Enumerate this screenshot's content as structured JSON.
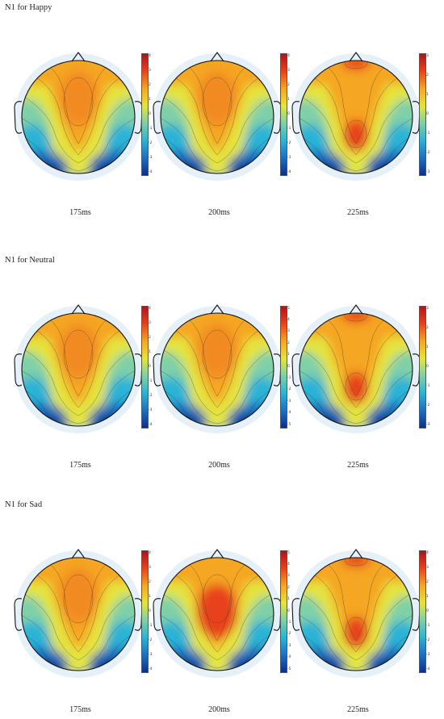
{
  "colormap": [
    "#0b2f8a",
    "#1f6fc0",
    "#2bb3d6",
    "#7fd0a8",
    "#e4e53c",
    "#f5a623",
    "#e8431a",
    "#b0131b"
  ],
  "sections": [
    {
      "title": "N1 for Happy",
      "panels": [
        {
          "time": "175ms",
          "ticks": [
            "4",
            "3",
            "2",
            "1",
            "0",
            "-1",
            "-2",
            "-3",
            "-4"
          ],
          "variant": "broad"
        },
        {
          "time": "200ms",
          "ticks": [
            "4",
            "3",
            "2",
            "1",
            "0",
            "-1",
            "-2",
            "-3",
            "-4"
          ],
          "variant": "broad"
        },
        {
          "time": "225ms",
          "ticks": [
            "3",
            "2",
            "1",
            "0",
            "-1",
            "-2",
            "-3"
          ],
          "variant": "focal"
        }
      ]
    },
    {
      "title": "N1 for Neutral",
      "panels": [
        {
          "time": "175ms",
          "ticks": [
            "4",
            "3",
            "2",
            "1",
            "0",
            "-1",
            "-2",
            "-3",
            "-4"
          ],
          "variant": "broad"
        },
        {
          "time": "200ms",
          "ticks": [
            "5",
            "4",
            "3",
            "2",
            "1",
            "0",
            "-1",
            "-2",
            "-3",
            "-4",
            "-5"
          ],
          "variant": "broad"
        },
        {
          "time": "225ms",
          "ticks": [
            "3",
            "2",
            "1",
            "0",
            "-1",
            "-2",
            "-3"
          ],
          "variant": "focal"
        }
      ]
    },
    {
      "title": "N1 for Sad",
      "panels": [
        {
          "time": "175ms",
          "ticks": [
            "4",
            "3",
            "2",
            "1",
            "0",
            "-1",
            "-2",
            "-3",
            "-4"
          ],
          "variant": "broad"
        },
        {
          "time": "200ms",
          "ticks": [
            "5",
            "4",
            "3",
            "2",
            "1",
            "0",
            "-1",
            "-2",
            "-3",
            "-4",
            "-5"
          ],
          "variant": "strong"
        },
        {
          "time": "225ms",
          "ticks": [
            "4",
            "3",
            "2",
            "1",
            "0",
            "-1",
            "-2",
            "-3",
            "-4"
          ],
          "variant": "focal"
        }
      ]
    }
  ]
}
